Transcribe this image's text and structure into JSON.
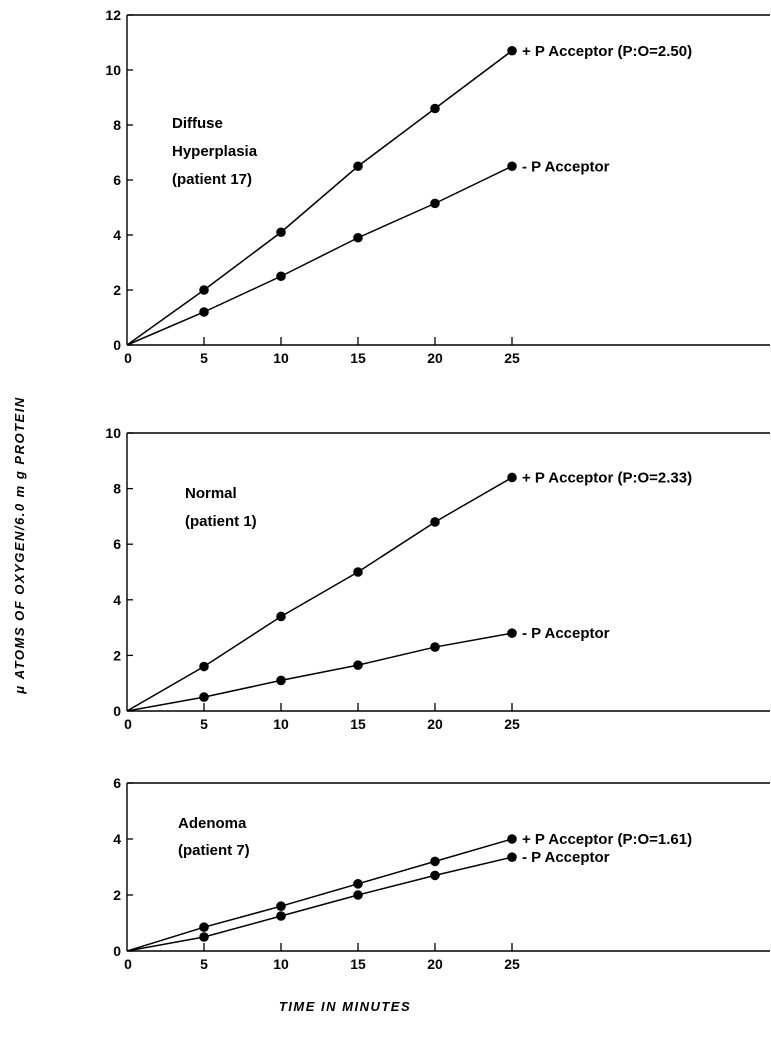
{
  "figure": {
    "xlabel": "TIME IN MINUTES",
    "ylabel": "μ ATOMS OF OXYGEN/6.0 m g PROTEIN"
  },
  "chart_data": [
    {
      "type": "line",
      "label_lines": [
        "Diffuse",
        "Hyperplasia",
        "(patient 17)"
      ],
      "x": [
        0,
        5,
        10,
        15,
        20,
        25
      ],
      "xticks": [
        "0",
        "5",
        "10",
        "15",
        "20",
        "25"
      ],
      "ylim": [
        0,
        12
      ],
      "yticks": [
        "0",
        "2",
        "4",
        "6",
        "8",
        "10",
        "12"
      ],
      "series": [
        {
          "name": "+ P Acceptor (P:O=2.50)",
          "values": [
            0,
            2.0,
            4.1,
            6.5,
            8.6,
            10.7
          ]
        },
        {
          "name": "- P Acceptor",
          "values": [
            0,
            1.2,
            2.5,
            3.9,
            5.15,
            6.5
          ]
        }
      ]
    },
    {
      "type": "line",
      "label_lines": [
        "Normal",
        "(patient 1)"
      ],
      "x": [
        0,
        5,
        10,
        15,
        20,
        25
      ],
      "xticks": [
        "0",
        "5",
        "10",
        "15",
        "20",
        "25"
      ],
      "ylim": [
        0,
        10
      ],
      "yticks": [
        "0",
        "2",
        "4",
        "6",
        "8",
        "10"
      ],
      "series": [
        {
          "name": "+ P Acceptor (P:O=2.33)",
          "values": [
            0,
            1.6,
            3.4,
            5.0,
            6.8,
            8.4
          ]
        },
        {
          "name": "- P Acceptor",
          "values": [
            0,
            0.5,
            1.1,
            1.65,
            2.3,
            2.8
          ]
        }
      ]
    },
    {
      "type": "line",
      "label_lines": [
        "Adenoma",
        "(patient 7)"
      ],
      "x": [
        0,
        5,
        10,
        15,
        20,
        25
      ],
      "xticks": [
        "0",
        "5",
        "10",
        "15",
        "20",
        "25"
      ],
      "ylim": [
        0,
        6
      ],
      "yticks": [
        "0",
        "2",
        "4",
        "6"
      ],
      "series": [
        {
          "name": "+ P Acceptor (P:O=1.61)",
          "values": [
            0,
            0.85,
            1.6,
            2.4,
            3.2,
            4.0
          ]
        },
        {
          "name": "- P Acceptor",
          "values": [
            0,
            0.5,
            1.25,
            2.0,
            2.7,
            3.35
          ]
        }
      ]
    }
  ]
}
